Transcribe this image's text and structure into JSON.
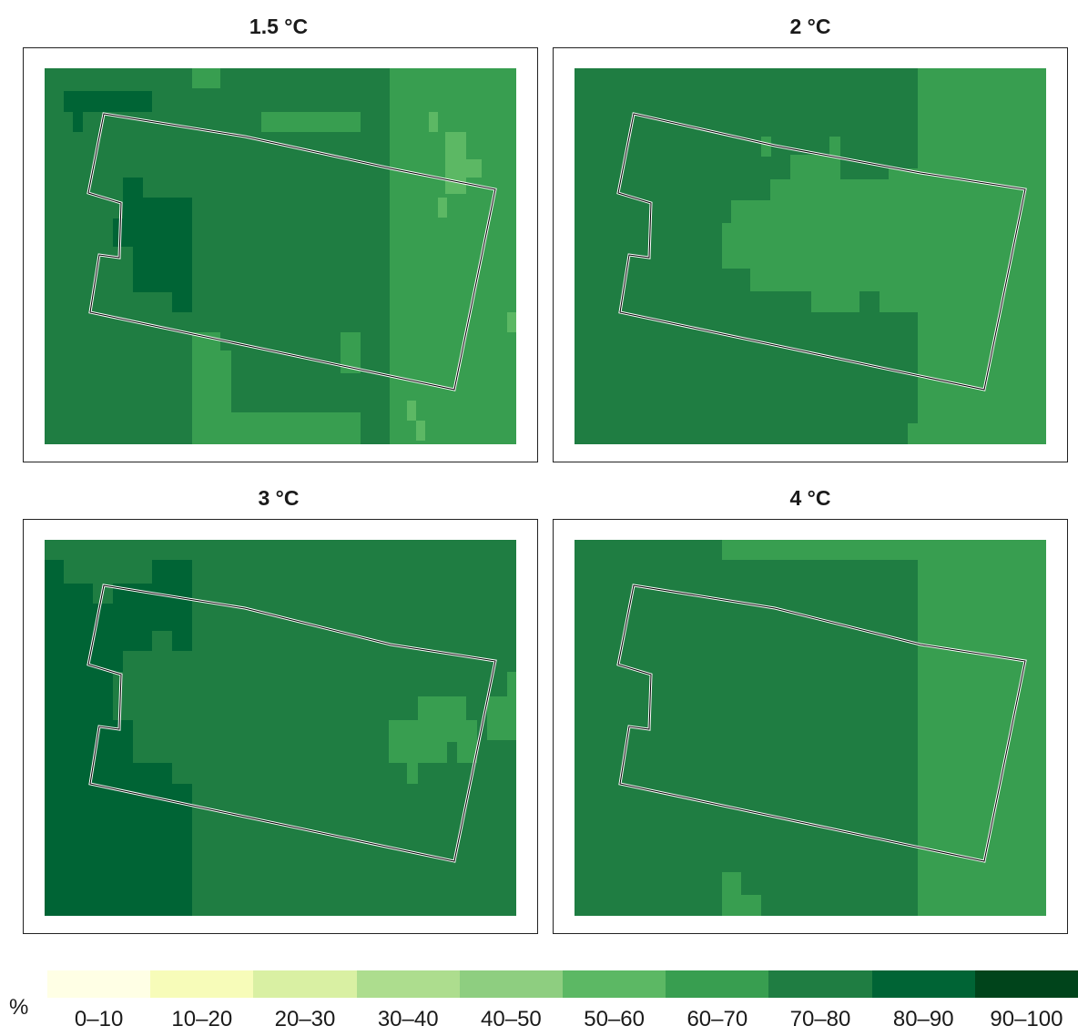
{
  "panels": [
    {
      "title": "1.5 °C"
    },
    {
      "title": "2 °C"
    },
    {
      "title": "3 °C"
    },
    {
      "title": "4 °C"
    }
  ],
  "legend": {
    "unit": "%",
    "classes": [
      {
        "label": "0–10",
        "color": "#ffffe5"
      },
      {
        "label": "10–20",
        "color": "#f7fcb9"
      },
      {
        "label": "20–30",
        "color": "#d9f0a3"
      },
      {
        "label": "30–40",
        "color": "#addd8e"
      },
      {
        "label": "40–50",
        "color": "#8ece80"
      },
      {
        "label": "50–60",
        "color": "#5cb864"
      },
      {
        "label": "60–70",
        "color": "#389e50"
      },
      {
        "label": "70–80",
        "color": "#1f7d42"
      },
      {
        "label": "80–90",
        "color": "#006435"
      },
      {
        "label": "90–100",
        "color": "#00441b"
      }
    ]
  },
  "colors": {
    "c60_70": "#389e50",
    "c70_80": "#1f7d42",
    "c80_90": "#006435",
    "c50_60": "#5cb864",
    "outline": "#000000",
    "outline_halo": "#ffffff"
  }
}
